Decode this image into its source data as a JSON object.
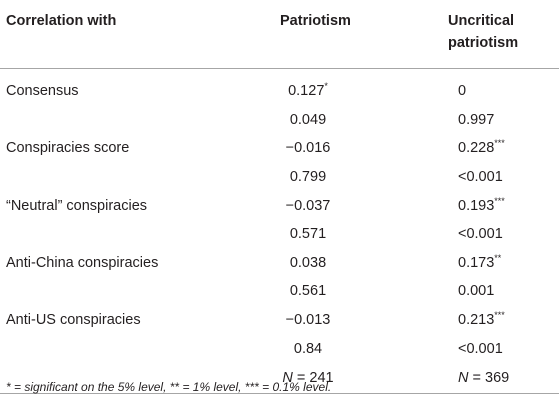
{
  "table": {
    "headers": {
      "col1": "Correlation with",
      "col2": "Patriotism",
      "col3_line1": "Uncritical",
      "col3_line2": "patriotism"
    },
    "rows": [
      {
        "label": "Consensus",
        "v1": "0.127",
        "v1_stars": "*",
        "v2": "0",
        "v2_stars": ""
      },
      {
        "label": "",
        "v1": "0.049",
        "v1_stars": "",
        "v2": "0.997",
        "v2_stars": ""
      },
      {
        "label": "Conspiracies score",
        "v1": "−0.016",
        "v1_stars": "",
        "v2": "0.228",
        "v2_stars": "***"
      },
      {
        "label": "",
        "v1": "0.799",
        "v1_stars": "",
        "v2": "<0.001",
        "v2_stars": ""
      },
      {
        "label": "“Neutral” conspiracies",
        "v1": "−0.037",
        "v1_stars": "",
        "v2": "0.193",
        "v2_stars": "***"
      },
      {
        "label": "",
        "v1": "0.571",
        "v1_stars": "",
        "v2": "<0.001",
        "v2_stars": ""
      },
      {
        "label": "Anti-China conspiracies",
        "v1": "0.038",
        "v1_stars": "",
        "v2": "0.173",
        "v2_stars": "**"
      },
      {
        "label": "",
        "v1": "0.561",
        "v1_stars": "",
        "v2": "0.001",
        "v2_stars": ""
      },
      {
        "label": "Anti-US conspiracies",
        "v1": "−0.013",
        "v1_stars": "",
        "v2": "0.213",
        "v2_stars": "***"
      },
      {
        "label": "",
        "v1": "0.84",
        "v1_stars": "",
        "v2": "<0.001",
        "v2_stars": ""
      }
    ],
    "n_row": {
      "n_symbol": "N",
      "eq": " = ",
      "v1": "241",
      "v2": "369"
    }
  },
  "footnote": "* = significant on the 5% level, ** = 1% level, *** = 0.1% level."
}
